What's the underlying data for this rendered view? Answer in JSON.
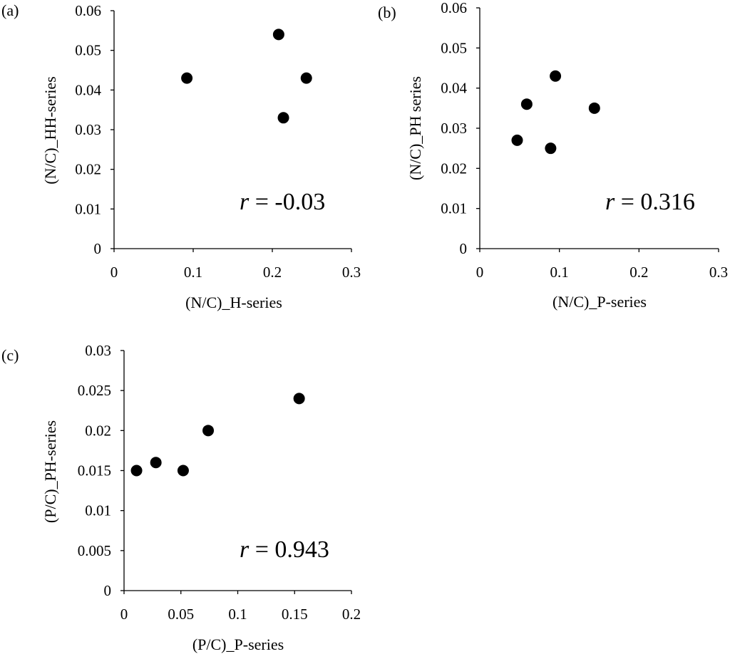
{
  "chart_data": [
    {
      "type": "scatter",
      "panel_label": "(a)",
      "xlabel": "(N/C)_H-series",
      "ylabel": "(N/C)_HH-series",
      "xlim": [
        0,
        0.3
      ],
      "ylim": [
        0,
        0.06
      ],
      "x_ticks": [
        "0",
        "0.1",
        "0.2",
        "0.3"
      ],
      "y_ticks": [
        "0",
        "0.01",
        "0.02",
        "0.03",
        "0.04",
        "0.05",
        "0.06"
      ],
      "points": [
        {
          "x": 0.092,
          "y": 0.043
        },
        {
          "x": 0.208,
          "y": 0.054
        },
        {
          "x": 0.214,
          "y": 0.033
        },
        {
          "x": 0.243,
          "y": 0.043
        }
      ],
      "annotation": {
        "var": "r",
        "text": " = -0.03"
      },
      "grid": false
    },
    {
      "type": "scatter",
      "panel_label": "(b)",
      "xlabel": "(N/C)_P-series",
      "ylabel": "(N/C)_PH series",
      "xlim": [
        0,
        0.3
      ],
      "ylim": [
        0,
        0.06
      ],
      "x_ticks": [
        "0",
        "0.1",
        "0.2",
        "0.3"
      ],
      "y_ticks": [
        "0",
        "0.01",
        "0.02",
        "0.03",
        "0.04",
        "0.05",
        "0.06"
      ],
      "points": [
        {
          "x": 0.047,
          "y": 0.027
        },
        {
          "x": 0.059,
          "y": 0.036
        },
        {
          "x": 0.089,
          "y": 0.025
        },
        {
          "x": 0.095,
          "y": 0.043
        },
        {
          "x": 0.144,
          "y": 0.035
        }
      ],
      "annotation": {
        "var": "r",
        "text": " = 0.316"
      },
      "grid": false
    },
    {
      "type": "scatter",
      "panel_label": "(c)",
      "xlabel": "(P/C)_P-series",
      "ylabel": "(P/C)_PH-series",
      "xlim": [
        0,
        0.2
      ],
      "ylim": [
        0,
        0.03
      ],
      "x_ticks": [
        "0",
        "0.05",
        "0.1",
        "0.15",
        "0.2"
      ],
      "y_ticks": [
        "0",
        "0.005",
        "0.01",
        "0.015",
        "0.02",
        "0.025",
        "0.03"
      ],
      "points": [
        {
          "x": 0.011,
          "y": 0.015
        },
        {
          "x": 0.028,
          "y": 0.016
        },
        {
          "x": 0.052,
          "y": 0.015
        },
        {
          "x": 0.074,
          "y": 0.02
        },
        {
          "x": 0.154,
          "y": 0.024
        }
      ],
      "annotation": {
        "var": "r",
        "text": " = 0.943"
      },
      "grid": false
    }
  ]
}
